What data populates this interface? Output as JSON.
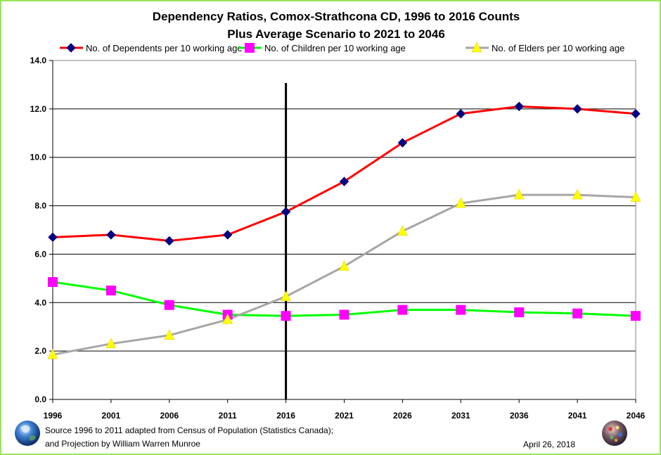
{
  "chart_data": {
    "type": "line",
    "title": "Dependency Ratios, Comox-Strathcona CD, 1996 to 2016 Counts",
    "subtitle": "Plus Average Scenario to  2021 to 2046",
    "categories": [
      "1996",
      "2001",
      "2006",
      "2011",
      "2016",
      "2021",
      "2026",
      "2031",
      "2036",
      "2041",
      "2046"
    ],
    "ylim": [
      0,
      14
    ],
    "yticks": [
      0,
      2,
      4,
      6,
      8,
      10,
      12,
      14
    ],
    "ytick_labels": [
      "0.0",
      "2.0",
      "4.0",
      "6.0",
      "8.0",
      "10.0",
      "12.0",
      "14.0"
    ],
    "grid": true,
    "legend_position": "top",
    "divider_at": "2016",
    "series": [
      {
        "name": "No. of Dependents per 10 working age",
        "color": "#ff0000",
        "marker": "diamond",
        "marker_color": "#000080",
        "values": [
          6.7,
          6.8,
          6.55,
          6.8,
          7.75,
          9.0,
          10.6,
          11.8,
          12.1,
          12.0,
          11.8
        ]
      },
      {
        "name": "No. of Children per 10 working age",
        "color": "#00ff00",
        "marker": "square",
        "marker_color": "#ff00ff",
        "values": [
          4.85,
          4.5,
          3.9,
          3.5,
          3.45,
          3.5,
          3.7,
          3.7,
          3.6,
          3.55,
          3.45
        ]
      },
      {
        "name": "No. of Elders per 10 working age",
        "color": "#a6a6a6",
        "marker": "triangle",
        "marker_color": "#ffff00",
        "values": [
          1.85,
          2.3,
          2.65,
          3.3,
          4.25,
          5.5,
          6.95,
          8.1,
          8.45,
          8.45,
          8.35
        ]
      }
    ]
  },
  "footer": {
    "source_line1": "Source  1996 to 2011 adapted from Census of Population (Statistics Canada);",
    "source_line2": "and Projection by William Warren Munroe",
    "date": "April 26, 2018"
  },
  "icons": {
    "left": "earth-globe-icon",
    "right": "mosaic-sphere-icon"
  }
}
